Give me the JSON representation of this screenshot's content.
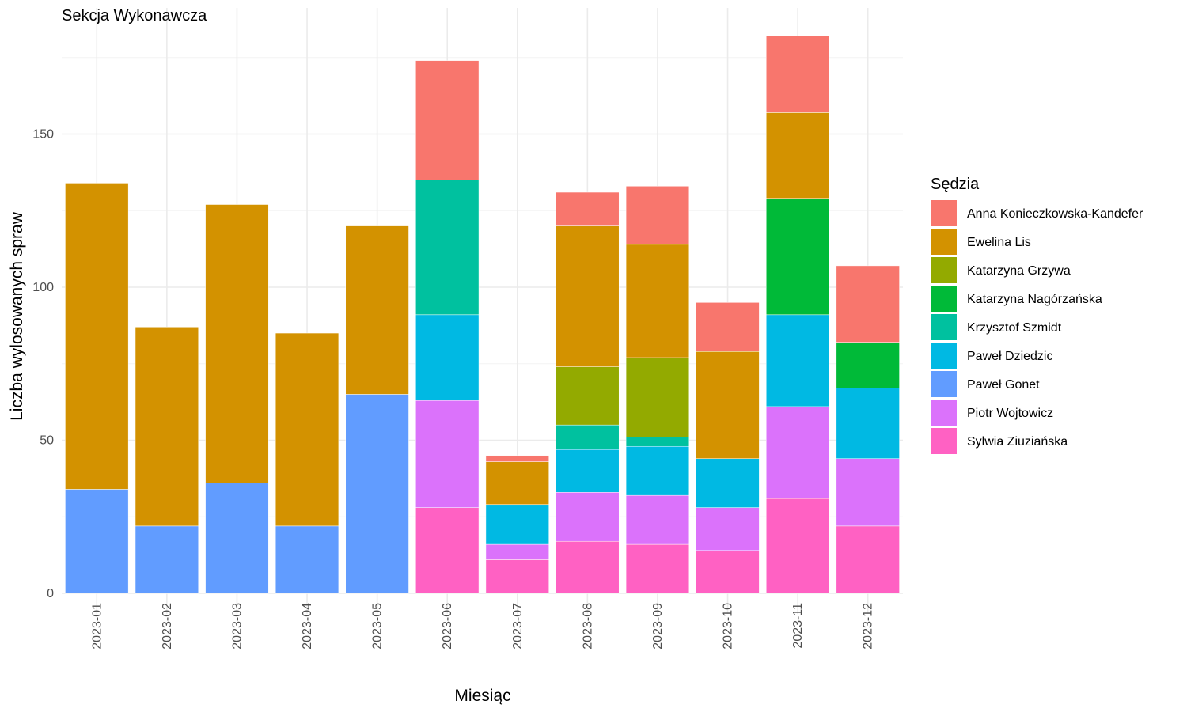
{
  "chart_data": {
    "type": "bar",
    "stacked": true,
    "title": "Sekcja Wykonawcza",
    "xlabel": "Miesiąc",
    "ylabel": "Liczba wylosowanych spraw",
    "ylim": [
      0,
      190
    ],
    "y_ticks": [
      0,
      50,
      100,
      150
    ],
    "grid": true,
    "legend_title": "Sędzia",
    "legend_position": "right",
    "categories": [
      "2023-01",
      "2023-02",
      "2023-03",
      "2023-04",
      "2023-05",
      "2023-06",
      "2023-07",
      "2023-08",
      "2023-09",
      "2023-10",
      "2023-11",
      "2023-12"
    ],
    "series": [
      {
        "name": "Anna Konieczkowska-Kandefer",
        "color": "#F8766D",
        "values": [
          0,
          0,
          0,
          0,
          0,
          39,
          2,
          11,
          19,
          16,
          25,
          25
        ]
      },
      {
        "name": "Ewelina Lis",
        "color": "#D39200",
        "values": [
          100,
          65,
          91,
          63,
          55,
          0,
          14,
          46,
          37,
          35,
          28,
          0
        ]
      },
      {
        "name": "Katarzyna Grzywa",
        "color": "#93AA00",
        "values": [
          0,
          0,
          0,
          0,
          0,
          0,
          0,
          19,
          26,
          0,
          0,
          0
        ]
      },
      {
        "name": "Katarzyna Nagórzańska",
        "color": "#00BA38",
        "values": [
          0,
          0,
          0,
          0,
          0,
          0,
          0,
          0,
          0,
          0,
          38,
          15
        ]
      },
      {
        "name": "Krzysztof Szmidt",
        "color": "#00C19F",
        "values": [
          0,
          0,
          0,
          0,
          0,
          44,
          0,
          8,
          3,
          0,
          0,
          0
        ]
      },
      {
        "name": "Paweł Dziedzic",
        "color": "#00B9E3",
        "values": [
          0,
          0,
          0,
          0,
          0,
          28,
          13,
          14,
          16,
          16,
          30,
          23
        ]
      },
      {
        "name": "Paweł Gonet",
        "color": "#619CFF",
        "values": [
          34,
          22,
          36,
          22,
          65,
          0,
          0,
          0,
          0,
          0,
          0,
          0
        ]
      },
      {
        "name": "Piotr Wojtowicz",
        "color": "#DB72FB",
        "values": [
          0,
          0,
          0,
          0,
          0,
          35,
          5,
          16,
          16,
          14,
          30,
          22
        ]
      },
      {
        "name": "Sylwia Ziuziańska",
        "color": "#FF61C3",
        "values": [
          0,
          0,
          0,
          0,
          0,
          28,
          11,
          17,
          16,
          14,
          31,
          22
        ]
      }
    ]
  }
}
